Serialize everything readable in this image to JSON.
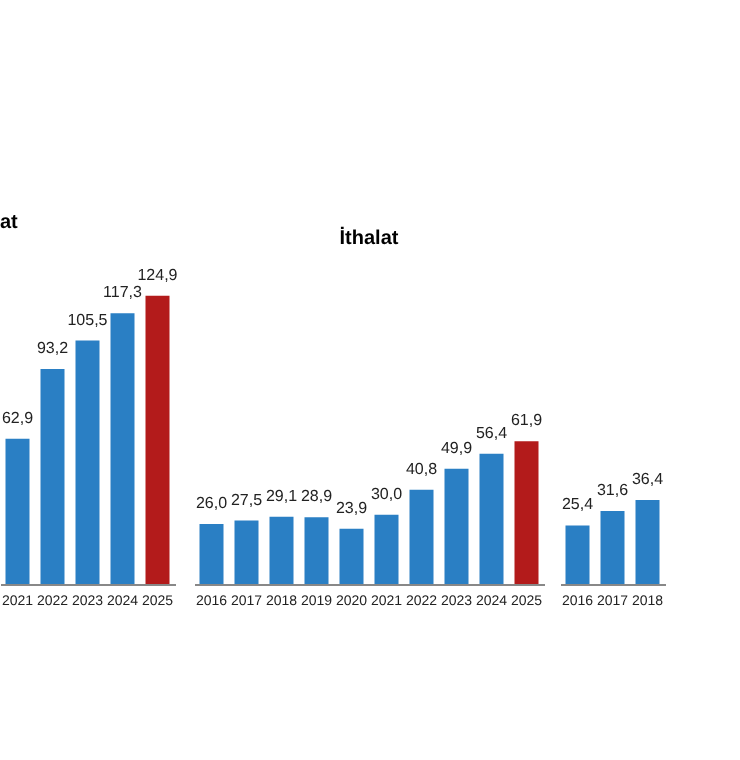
{
  "chart_data": [
    {
      "type": "bar",
      "title": "at",
      "categories": [
        "2021",
        "2022",
        "2023",
        "2024",
        "2025"
      ],
      "values": [
        62.9,
        93.2,
        105.5,
        117.3,
        124.9
      ],
      "colors": [
        "#2a7fc4",
        "#2a7fc4",
        "#2a7fc4",
        "#2a7fc4",
        "#b31b1b"
      ],
      "value_labels": [
        "62,9",
        "93,2",
        "105,5",
        "117,3",
        "124,9"
      ]
    },
    {
      "type": "bar",
      "title": "İthalat",
      "categories": [
        "2016",
        "2017",
        "2018",
        "2019",
        "2020",
        "2021",
        "2022",
        "2023",
        "2024",
        "2025"
      ],
      "values": [
        26.0,
        27.5,
        29.1,
        28.9,
        23.9,
        30.0,
        40.8,
        49.9,
        56.4,
        61.9
      ],
      "colors": [
        "#2a7fc4",
        "#2a7fc4",
        "#2a7fc4",
        "#2a7fc4",
        "#2a7fc4",
        "#2a7fc4",
        "#2a7fc4",
        "#2a7fc4",
        "#2a7fc4",
        "#b31b1b"
      ],
      "value_labels": [
        "26,0",
        "27,5",
        "29,1",
        "28,9",
        "23,9",
        "30,0",
        "40,8",
        "49,9",
        "56,4",
        "61,9"
      ]
    },
    {
      "type": "bar",
      "categories": [
        "2016",
        "2017",
        "2018"
      ],
      "values": [
        25.4,
        31.6,
        36.4
      ],
      "colors": [
        "#2a7fc4",
        "#2a7fc4",
        "#2a7fc4"
      ],
      "value_labels": [
        "25,4",
        "31,6",
        "36,4"
      ]
    }
  ]
}
